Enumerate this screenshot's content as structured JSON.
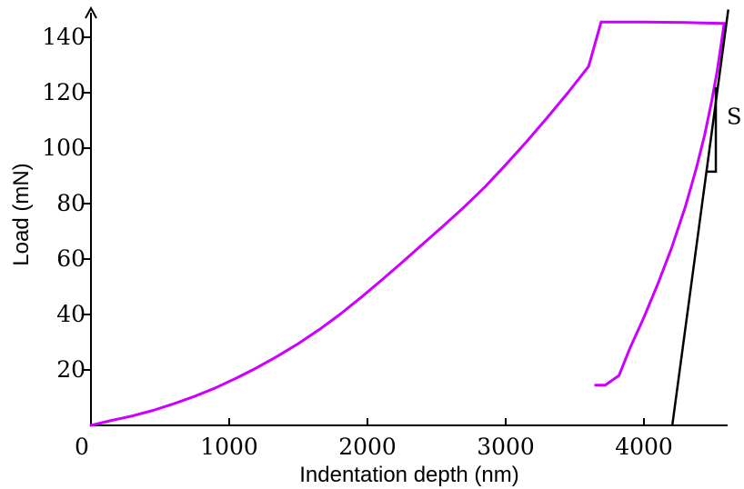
{
  "chart_data": {
    "type": "line",
    "title": "",
    "xlabel": "Indentation depth (nm)",
    "ylabel": "Load (mN)",
    "xlim": [
      0,
      4600
    ],
    "ylim": [
      0,
      150
    ],
    "x_ticks": [
      0,
      1000,
      2000,
      3000,
      4000
    ],
    "x_tick_labels": [
      "0",
      "1000",
      "2000",
      "3000",
      "4000"
    ],
    "y_ticks": [
      20,
      40,
      60,
      80,
      100,
      120,
      140
    ],
    "y_tick_labels": [
      "20",
      "40",
      "60",
      "80",
      "100",
      "120",
      "140"
    ],
    "grid": false,
    "colors": {
      "curve": "#cc00ff",
      "tangent": "#000000",
      "axes": "#000000"
    },
    "series": [
      {
        "role": "loading",
        "x": [
          0,
          150,
          300,
          450,
          600,
          750,
          900,
          1050,
          1200,
          1350,
          1500,
          1650,
          1800,
          1950,
          2100,
          2250,
          2400,
          2550,
          2700,
          2850,
          3000,
          3150,
          3300,
          3450,
          3600,
          3690
        ],
        "y": [
          0,
          1.8,
          3.4,
          5.4,
          7.8,
          10.5,
          13.5,
          17,
          20.8,
          25,
          29.5,
          34.5,
          40,
          46,
          52.3,
          58.8,
          65.4,
          72,
          78.8,
          86,
          94,
          102.3,
          111,
          120,
          129.5,
          145.5
        ]
      },
      {
        "role": "hold",
        "x": [
          3690,
          4000,
          4300,
          4580
        ],
        "y": [
          145.5,
          145.5,
          145.3,
          145
        ]
      },
      {
        "role": "unloading",
        "x": [
          4580,
          4560,
          4530,
          4490,
          4440,
          4380,
          4300,
          4200,
          4100,
          4000,
          3900,
          3820,
          3720,
          3650
        ],
        "y": [
          145,
          138,
          128,
          117,
          105,
          93,
          79,
          64,
          51,
          39,
          28,
          18,
          14.5,
          14.5
        ]
      }
    ],
    "annotations": [
      {
        "type": "tangent-line",
        "from": [
          4205,
          0
        ],
        "to": [
          4610,
          150
        ]
      },
      {
        "type": "slope-triangle",
        "label": "S",
        "x": 4520,
        "y_low": 91.5,
        "y_high": 122,
        "x_left": 4460
      }
    ]
  }
}
